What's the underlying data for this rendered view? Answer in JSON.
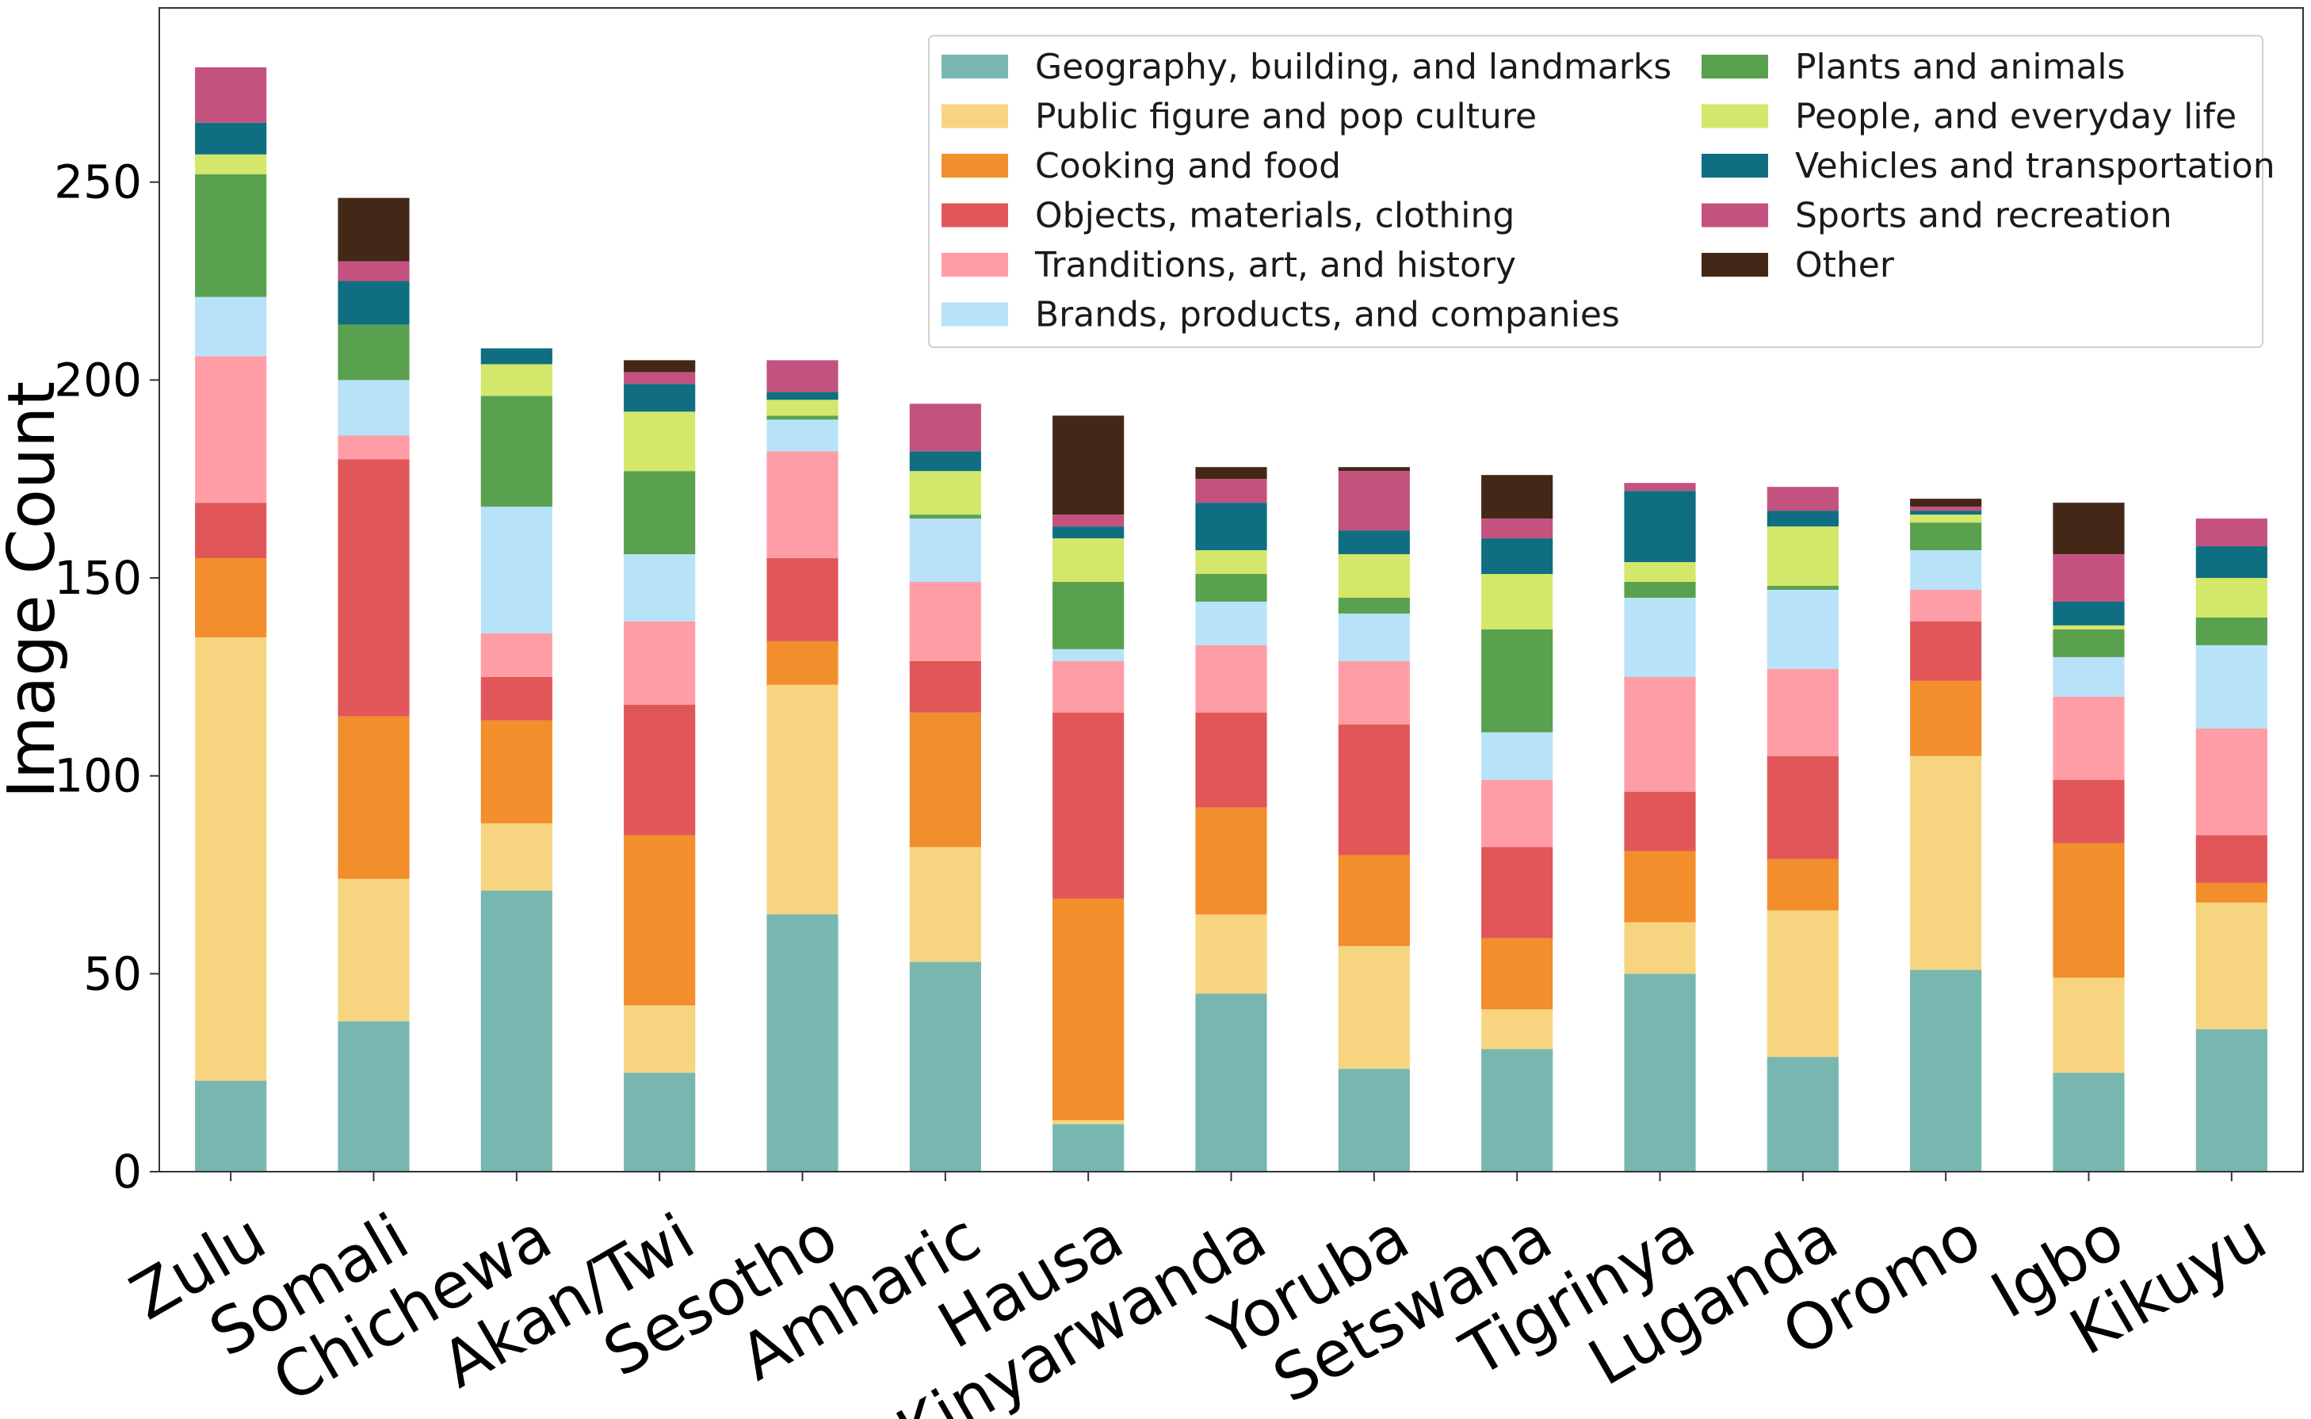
{
  "chart_data": {
    "type": "bar",
    "stacked": true,
    "title": "",
    "xlabel": "",
    "ylabel": "Image Count",
    "ylim": [
      0,
      294
    ],
    "yticks": [
      0,
      50,
      100,
      150,
      200,
      250
    ],
    "legend_position": "top-right",
    "categories": [
      "Zulu",
      "Somali",
      "Chichewa",
      "Akan/Twi",
      "Sesotho",
      "Amharic",
      "Hausa",
      "Kinyarwanda",
      "Yoruba",
      "Setswana",
      "Tigrinya",
      "Luganda",
      "Oromo",
      "Igbo",
      "Kikuyu"
    ],
    "series": [
      {
        "name": "Geography, building, and landmarks",
        "color": "#78b7b0",
        "values": [
          23,
          38,
          71,
          25,
          65,
          53,
          12,
          45,
          26,
          31,
          50,
          29,
          51,
          25,
          36
        ]
      },
      {
        "name": "Public figure and pop culture",
        "color": "#f7d580",
        "values": [
          112,
          36,
          17,
          17,
          58,
          29,
          1,
          20,
          31,
          10,
          13,
          37,
          54,
          24,
          32
        ]
      },
      {
        "name": "Cooking and food",
        "color": "#f28e2b",
        "values": [
          20,
          41,
          26,
          43,
          11,
          34,
          56,
          27,
          23,
          18,
          18,
          13,
          19,
          34,
          5
        ]
      },
      {
        "name": "Objects, materials, clothing",
        "color": "#e15759",
        "values": [
          14,
          65,
          11,
          33,
          21,
          13,
          47,
          24,
          33,
          23,
          15,
          26,
          15,
          16,
          12
        ]
      },
      {
        "name": "Tranditions, art, and history",
        "color": "#ff9da7",
        "values": [
          37,
          6,
          11,
          21,
          27,
          20,
          13,
          17,
          16,
          17,
          29,
          22,
          8,
          21,
          27
        ]
      },
      {
        "name": "Brands, products, and companies",
        "color": "#b8e2f8",
        "values": [
          15,
          14,
          32,
          17,
          8,
          16,
          3,
          11,
          12,
          12,
          20,
          20,
          10,
          10,
          21
        ]
      },
      {
        "name": "Plants and animals",
        "color": "#59a14f",
        "values": [
          31,
          14,
          28,
          21,
          1,
          1,
          17,
          7,
          4,
          26,
          4,
          1,
          7,
          7,
          7
        ]
      },
      {
        "name": "People, and everyday life",
        "color": "#d3e76a",
        "values": [
          5,
          0,
          8,
          15,
          4,
          11,
          11,
          6,
          11,
          14,
          5,
          15,
          2,
          1,
          10
        ]
      },
      {
        "name": "Vehicles and transportation",
        "color": "#0f6e82",
        "values": [
          8,
          11,
          4,
          7,
          2,
          5,
          3,
          12,
          6,
          9,
          18,
          4,
          1,
          6,
          8
        ]
      },
      {
        "name": "Sports and recreation",
        "color": "#c4527f",
        "values": [
          14,
          5,
          0,
          3,
          8,
          12,
          3,
          6,
          15,
          5,
          2,
          6,
          1,
          12,
          7
        ]
      },
      {
        "name": "Other",
        "color": "#432818",
        "values": [
          0,
          16,
          0,
          3,
          0,
          0,
          25,
          3,
          1,
          11,
          0,
          0,
          2,
          13,
          0
        ]
      }
    ]
  }
}
